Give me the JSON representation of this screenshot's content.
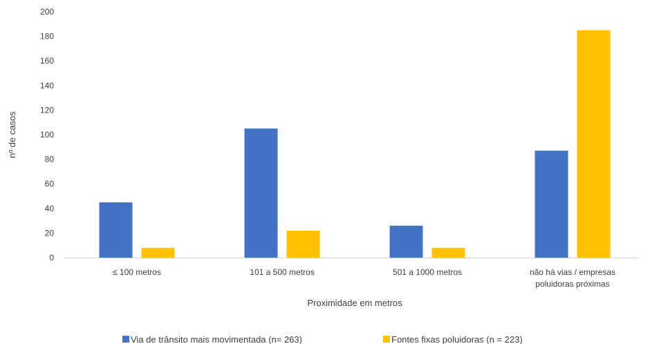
{
  "chart_data": {
    "type": "bar",
    "title": "",
    "xlabel": "Proximidade em metros",
    "ylabel": "nº de casos",
    "ylim": [
      0,
      200
    ],
    "yticks": [
      0,
      20,
      40,
      60,
      80,
      100,
      120,
      140,
      160,
      180,
      200
    ],
    "grid": false,
    "legend_position": "bottom",
    "categories": [
      [
        "≤ 100 metros"
      ],
      [
        "101 a 500 metros"
      ],
      [
        "501 a 1000 metros"
      ],
      [
        "não há vias / empresas",
        "poluidoras próximas"
      ]
    ],
    "series": [
      {
        "name": "Via de trânsito mais movimentada (n= 263)",
        "color": "#4472C4",
        "values": [
          45,
          105,
          26,
          87
        ]
      },
      {
        "name": "Fontes fixas poluidoras (n = 223)",
        "color": "#FFC000",
        "values": [
          8,
          22,
          8,
          185
        ]
      }
    ]
  }
}
